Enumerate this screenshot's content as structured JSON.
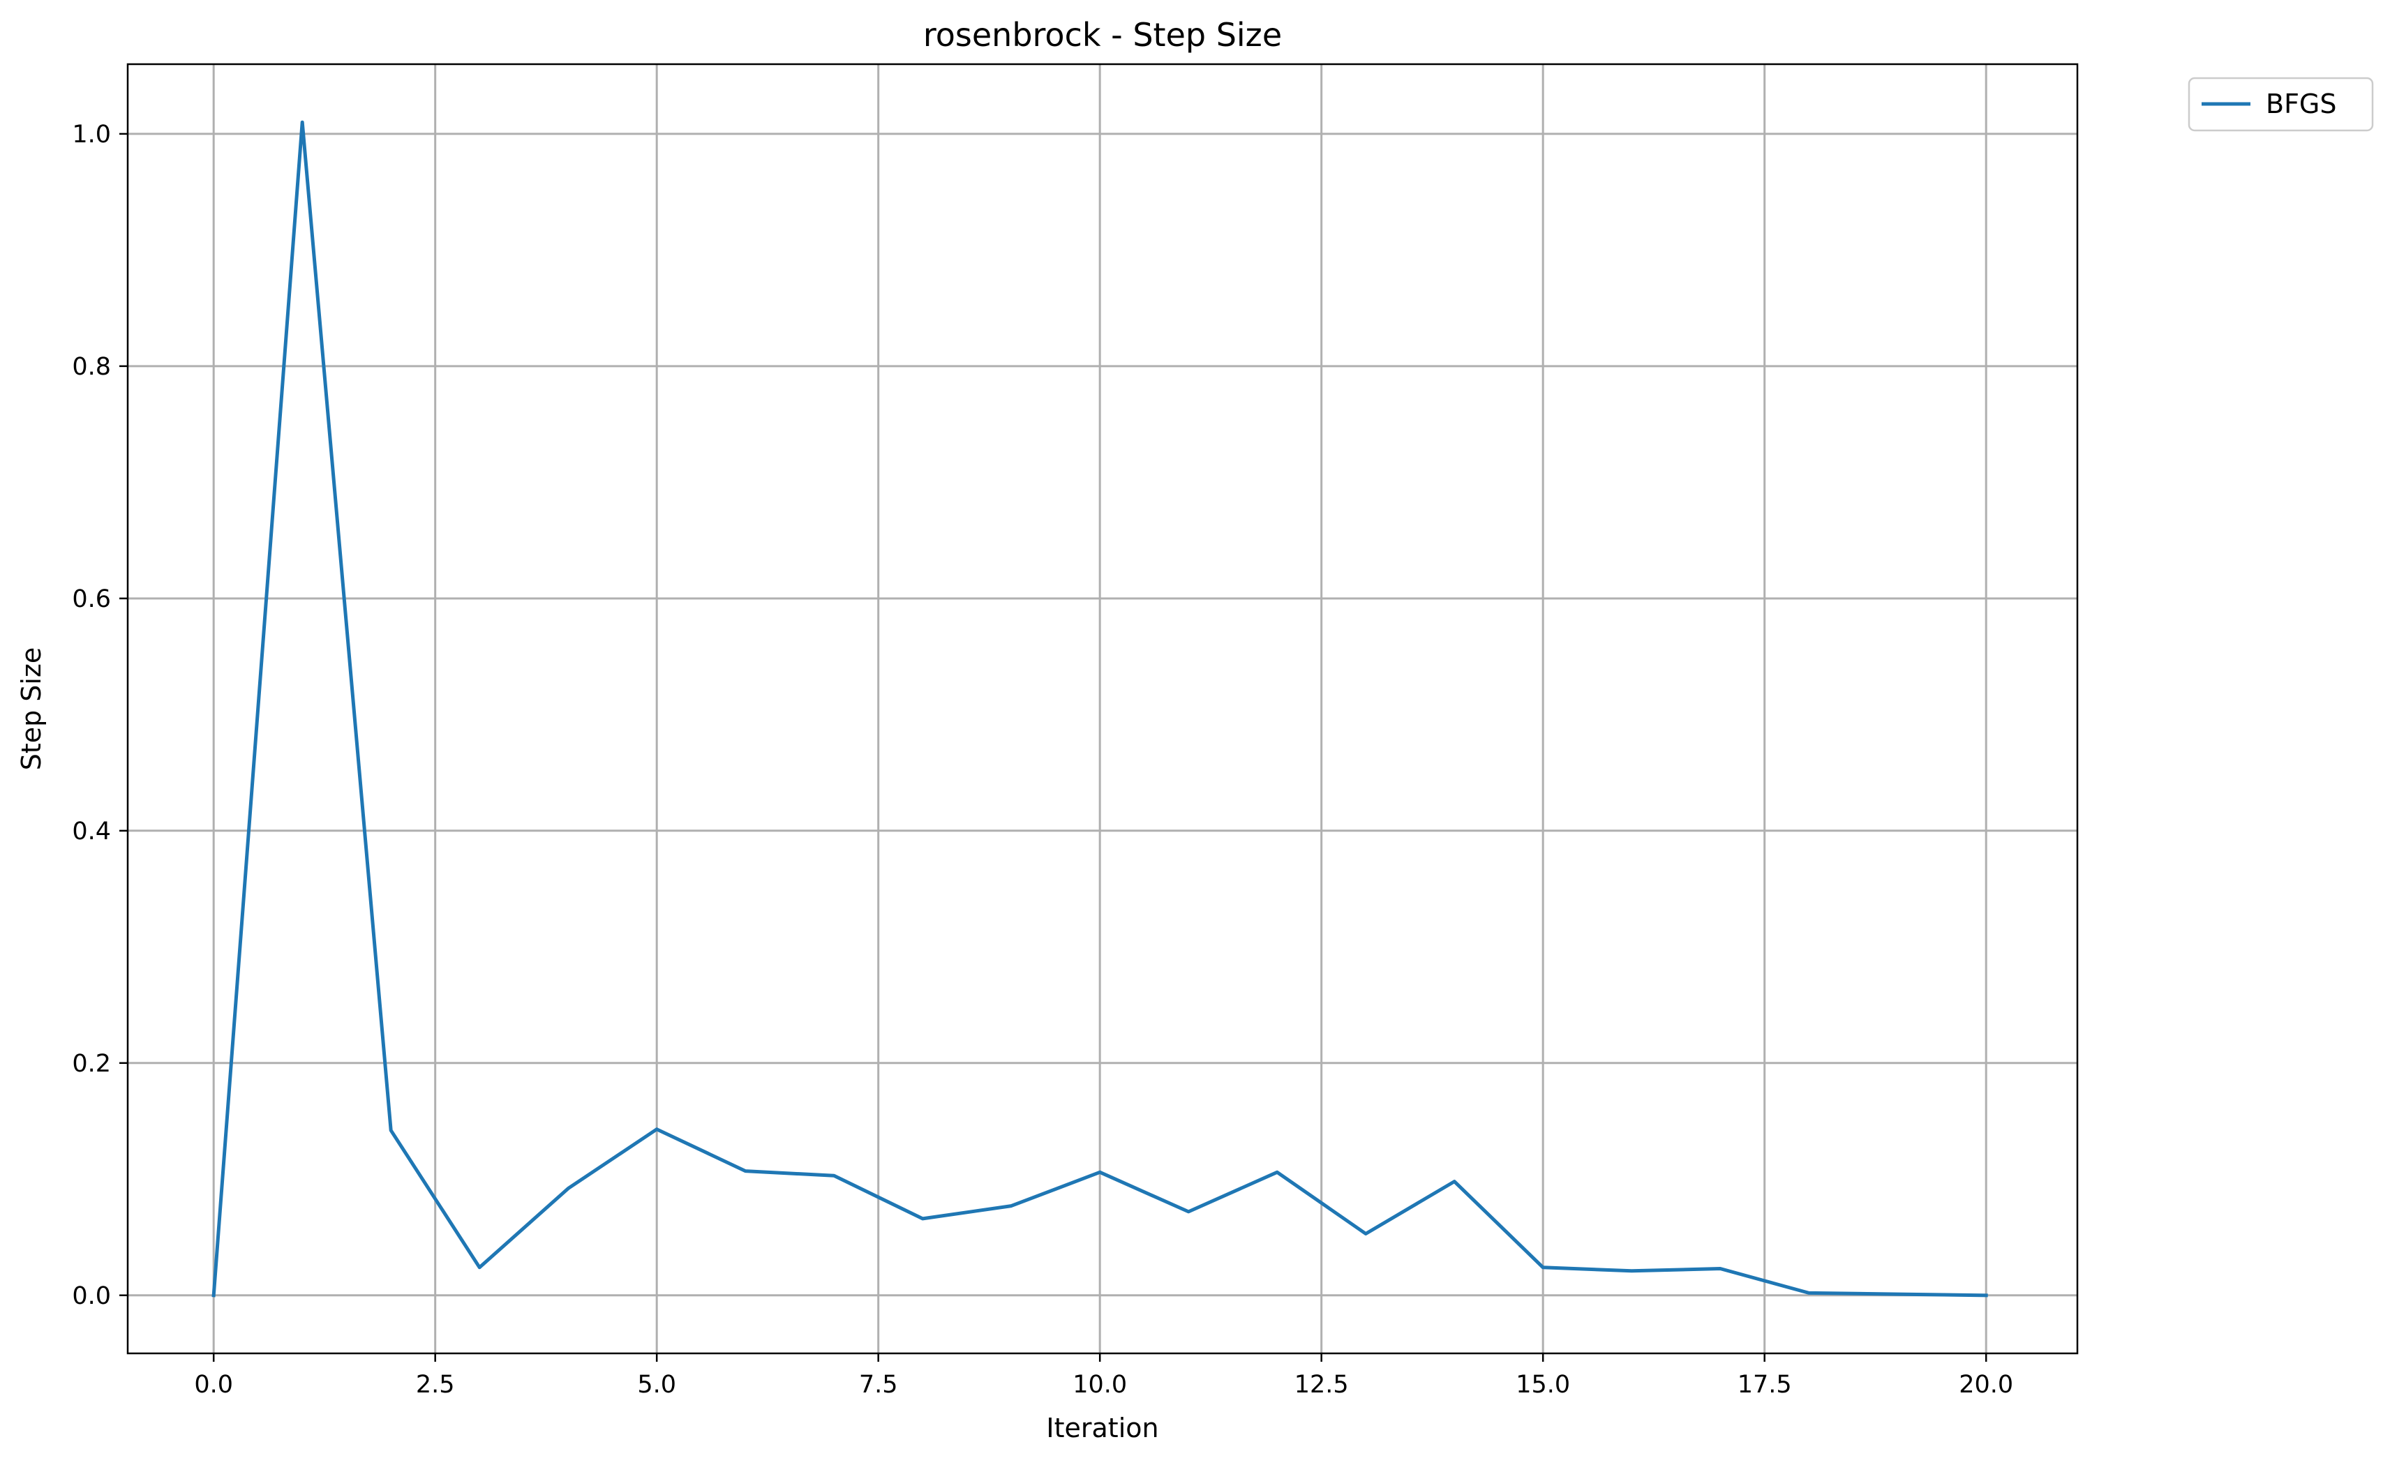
{
  "chart_data": {
    "type": "line",
    "title": "rosenbrock - Step Size",
    "xlabel": "Iteration",
    "ylabel": "Step Size",
    "xlim": [
      -0.97,
      21.03
    ],
    "ylim": [
      -0.05,
      1.06
    ],
    "xticks": [
      0.0,
      2.5,
      5.0,
      7.5,
      10.0,
      12.5,
      15.0,
      17.5,
      20.0
    ],
    "xtick_labels": [
      "0.0",
      "2.5",
      "5.0",
      "7.5",
      "10.0",
      "12.5",
      "15.0",
      "17.5",
      "20.0"
    ],
    "yticks": [
      0.0,
      0.2,
      0.4,
      0.6,
      0.8,
      1.0
    ],
    "ytick_labels": [
      "0.0",
      "0.2",
      "0.4",
      "0.6",
      "0.8",
      "1.0"
    ],
    "grid": true,
    "legend_position": "outside-top-right",
    "series": [
      {
        "name": "BFGS",
        "color": "#1f77b4",
        "x": [
          0,
          1,
          2,
          3,
          4,
          5,
          6,
          7,
          8,
          9,
          10,
          11,
          12,
          13,
          14,
          15,
          16,
          17,
          18,
          19,
          20
        ],
        "y": [
          0.0,
          1.01,
          0.142,
          0.024,
          0.092,
          0.143,
          0.107,
          0.103,
          0.066,
          0.077,
          0.106,
          0.072,
          0.106,
          0.053,
          0.098,
          0.024,
          0.021,
          0.023,
          0.002,
          0.001,
          0.0
        ]
      }
    ]
  }
}
